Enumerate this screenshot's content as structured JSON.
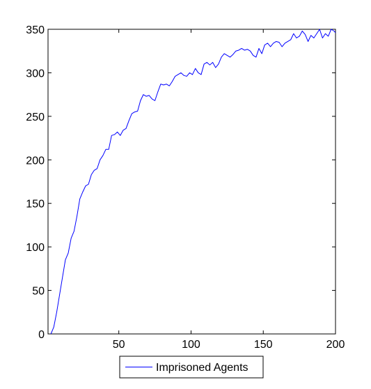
{
  "chart_data": {
    "type": "line",
    "title": "",
    "xlabel": "",
    "ylabel": "",
    "xlim": [
      1,
      200
    ],
    "ylim": [
      0,
      350
    ],
    "xticks": [
      50,
      100,
      150,
      200
    ],
    "yticks": [
      0,
      50,
      100,
      150,
      200,
      250,
      300,
      350
    ],
    "grid": false,
    "legend_position": "bottom-center-outside",
    "series": [
      {
        "name": "Imprisoned Agents",
        "color": "#0000ff",
        "x": [
          3,
          5,
          7,
          9,
          11,
          13,
          15,
          17,
          19,
          21,
          23,
          25,
          27,
          29,
          31,
          33,
          35,
          37,
          39,
          41,
          43,
          45,
          47,
          49,
          51,
          53,
          55,
          57,
          59,
          61,
          63,
          65,
          67,
          69,
          71,
          73,
          75,
          77,
          79,
          81,
          83,
          85,
          87,
          89,
          91,
          93,
          95,
          97,
          99,
          101,
          103,
          105,
          107,
          109,
          111,
          113,
          115,
          117,
          119,
          121,
          123,
          125,
          127,
          129,
          131,
          133,
          135,
          137,
          139,
          141,
          143,
          145,
          147,
          149,
          151,
          153,
          155,
          157,
          159,
          161,
          163,
          165,
          167,
          169,
          171,
          173,
          175,
          177,
          179,
          181,
          183,
          185,
          187,
          189,
          191,
          193,
          195,
          197,
          199,
          200
        ],
        "y": [
          0,
          8,
          25,
          45,
          65,
          85,
          93,
          110,
          118,
          135,
          155,
          163,
          170,
          172,
          183,
          188,
          190,
          200,
          205,
          212,
          212,
          228,
          229,
          232,
          228,
          234,
          236,
          245,
          253,
          255,
          256,
          268,
          275,
          273,
          274,
          270,
          268,
          278,
          287,
          286,
          287,
          285,
          290,
          296,
          298,
          300,
          297,
          296,
          300,
          298,
          305,
          300,
          298,
          310,
          312,
          309,
          312,
          306,
          310,
          318,
          322,
          320,
          318,
          321,
          325,
          326,
          328,
          326,
          327,
          325,
          320,
          318,
          328,
          322,
          332,
          334,
          330,
          334,
          336,
          335,
          330,
          334,
          336,
          338,
          345,
          340,
          342,
          348,
          344,
          336,
          343,
          340,
          345,
          350,
          340,
          345,
          342,
          350,
          348,
          346
        ]
      }
    ]
  }
}
